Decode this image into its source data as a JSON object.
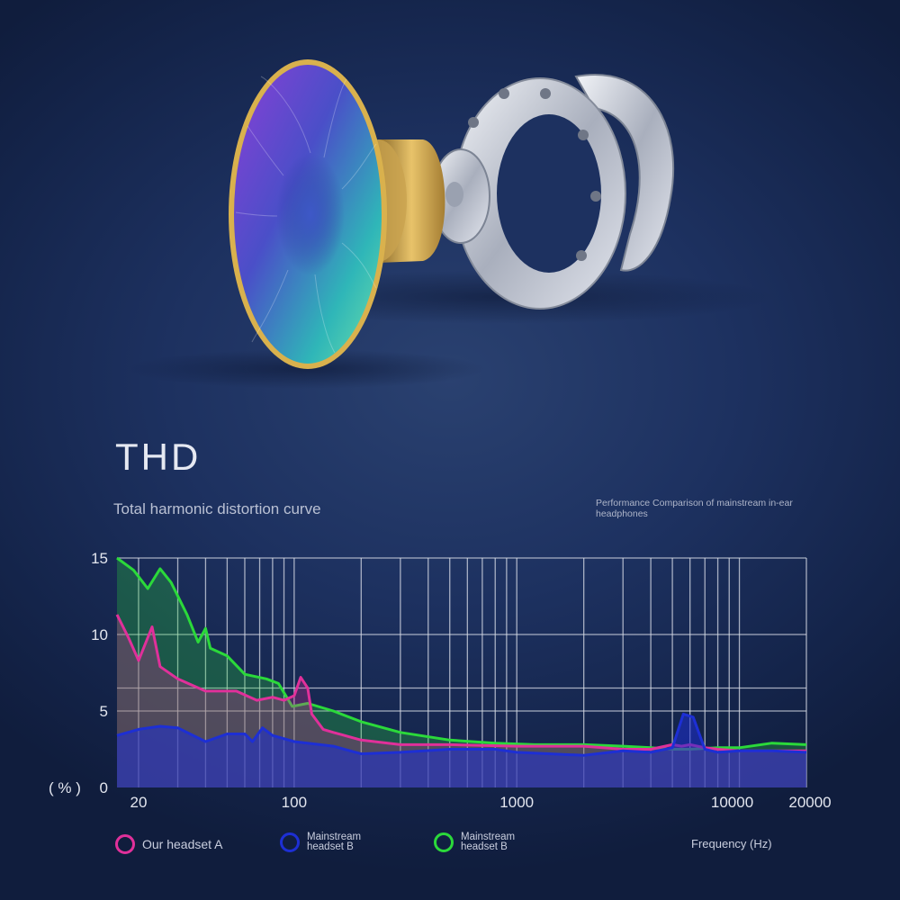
{
  "heading": {
    "title": "THD",
    "subtitle": "Total harmonic distortion curve",
    "note": "Performance Comparison of mainstream in-ear headphones"
  },
  "legend": [
    {
      "label": "Our headset A",
      "color": "#e0309a"
    },
    {
      "label": "Mainstream headset B",
      "color": "#1d2fd4"
    },
    {
      "label": "Mainstream headset B",
      "color": "#2bd93a"
    }
  ],
  "chart_data": {
    "type": "area",
    "x_scale": "log",
    "xlim": [
      16,
      20000
    ],
    "ylim": [
      0,
      15
    ],
    "y_ticks": [
      "15",
      "10",
      "5",
      "0"
    ],
    "y_unit": "( % )",
    "x_ticks": [
      "20",
      "100",
      "1000",
      "10000",
      "20000"
    ],
    "xlabel": "Frequency (Hz)",
    "grid": true,
    "legend_position": "bottom",
    "series": [
      {
        "name": "Mainstream headset B",
        "color": "#2bd93a",
        "points": [
          [
            16,
            15
          ],
          [
            19,
            14.2
          ],
          [
            22,
            13
          ],
          [
            25,
            14.3
          ],
          [
            28,
            13.4
          ],
          [
            33,
            11.3
          ],
          [
            37,
            9.5
          ],
          [
            40,
            10.4
          ],
          [
            42,
            9.1
          ],
          [
            50,
            8.6
          ],
          [
            60,
            7.4
          ],
          [
            75,
            7.1
          ],
          [
            85,
            6.8
          ],
          [
            98,
            5.3
          ],
          [
            115,
            5.5
          ],
          [
            150,
            5.0
          ],
          [
            200,
            4.3
          ],
          [
            300,
            3.6
          ],
          [
            500,
            3.1
          ],
          [
            800,
            2.9
          ],
          [
            1200,
            2.8
          ],
          [
            2000,
            2.8
          ],
          [
            3000,
            2.7
          ],
          [
            4000,
            2.6
          ],
          [
            5000,
            2.5
          ],
          [
            6000,
            2.5
          ],
          [
            8000,
            2.6
          ],
          [
            10000,
            2.6
          ],
          [
            14000,
            2.9
          ],
          [
            20000,
            2.8
          ]
        ]
      },
      {
        "name": "Our headset A",
        "color": "#e0309a",
        "points": [
          [
            16,
            11.3
          ],
          [
            18,
            9.8
          ],
          [
            20,
            8.3
          ],
          [
            23,
            10.5
          ],
          [
            25,
            7.9
          ],
          [
            30,
            7.1
          ],
          [
            40,
            6.3
          ],
          [
            55,
            6.3
          ],
          [
            68,
            5.7
          ],
          [
            80,
            5.9
          ],
          [
            90,
            5.7
          ],
          [
            100,
            6.0
          ],
          [
            107,
            7.2
          ],
          [
            115,
            6.5
          ],
          [
            120,
            4.8
          ],
          [
            135,
            3.8
          ],
          [
            150,
            3.6
          ],
          [
            200,
            3.1
          ],
          [
            300,
            2.8
          ],
          [
            500,
            2.8
          ],
          [
            1000,
            2.7
          ],
          [
            2000,
            2.7
          ],
          [
            3000,
            2.5
          ],
          [
            4000,
            2.5
          ],
          [
            5000,
            2.8
          ],
          [
            5500,
            2.7
          ],
          [
            6000,
            2.8
          ],
          [
            7000,
            2.6
          ],
          [
            8000,
            2.5
          ],
          [
            10000,
            2.4
          ],
          [
            14000,
            2.4
          ],
          [
            20000,
            2.4
          ]
        ]
      },
      {
        "name": "Mainstream headset B",
        "color": "#1d2fd4",
        "points": [
          [
            16,
            3.4
          ],
          [
            20,
            3.8
          ],
          [
            25,
            4.0
          ],
          [
            30,
            3.9
          ],
          [
            40,
            3.0
          ],
          [
            50,
            3.5
          ],
          [
            60,
            3.5
          ],
          [
            65,
            3.0
          ],
          [
            72,
            3.9
          ],
          [
            80,
            3.4
          ],
          [
            100,
            3.0
          ],
          [
            150,
            2.7
          ],
          [
            200,
            2.2
          ],
          [
            300,
            2.3
          ],
          [
            500,
            2.5
          ],
          [
            800,
            2.5
          ],
          [
            1000,
            2.3
          ],
          [
            2000,
            2.1
          ],
          [
            3000,
            2.4
          ],
          [
            4000,
            2.3
          ],
          [
            5000,
            2.6
          ],
          [
            5600,
            4.8
          ],
          [
            6200,
            4.6
          ],
          [
            7000,
            2.5
          ],
          [
            8000,
            2.3
          ],
          [
            10000,
            2.4
          ],
          [
            14000,
            2.4
          ],
          [
            20000,
            2.3
          ]
        ]
      }
    ]
  }
}
